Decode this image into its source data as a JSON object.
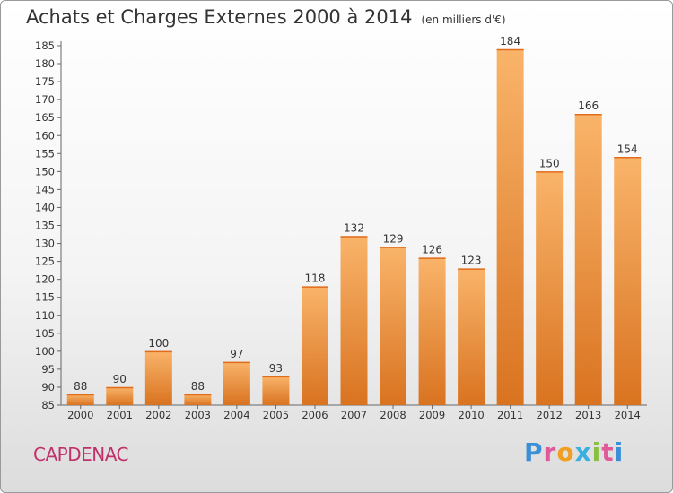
{
  "title": "Achats et Charges Externes 2000 à 2014",
  "subtitle": "(en milliers d'€)",
  "location": "CAPDENAC",
  "logo": {
    "letters": [
      "P",
      "r",
      "o",
      "x",
      "i",
      "t",
      "i"
    ],
    "colors": [
      "#3a8fd6",
      "#e05a9a",
      "#f0a020",
      "#3ab0e0",
      "#8ac040",
      "#e05a9a",
      "#3a8fd6"
    ]
  },
  "colors": {
    "bar": "#f0903a",
    "bar_light": "#f9b46a",
    "bar_dark": "#d97320"
  },
  "chart_data": {
    "type": "bar",
    "categories": [
      "2000",
      "2001",
      "2002",
      "2003",
      "2004",
      "2005",
      "2006",
      "2007",
      "2008",
      "2009",
      "2010",
      "2011",
      "2012",
      "2013",
      "2014"
    ],
    "values": [
      88,
      90,
      100,
      88,
      97,
      93,
      118,
      132,
      129,
      126,
      123,
      184,
      150,
      166,
      154
    ],
    "ylim": [
      85,
      185
    ],
    "yticks": [
      85,
      90,
      95,
      100,
      105,
      110,
      115,
      120,
      125,
      130,
      135,
      140,
      145,
      150,
      155,
      160,
      165,
      170,
      175,
      180,
      185
    ],
    "grid": false
  }
}
